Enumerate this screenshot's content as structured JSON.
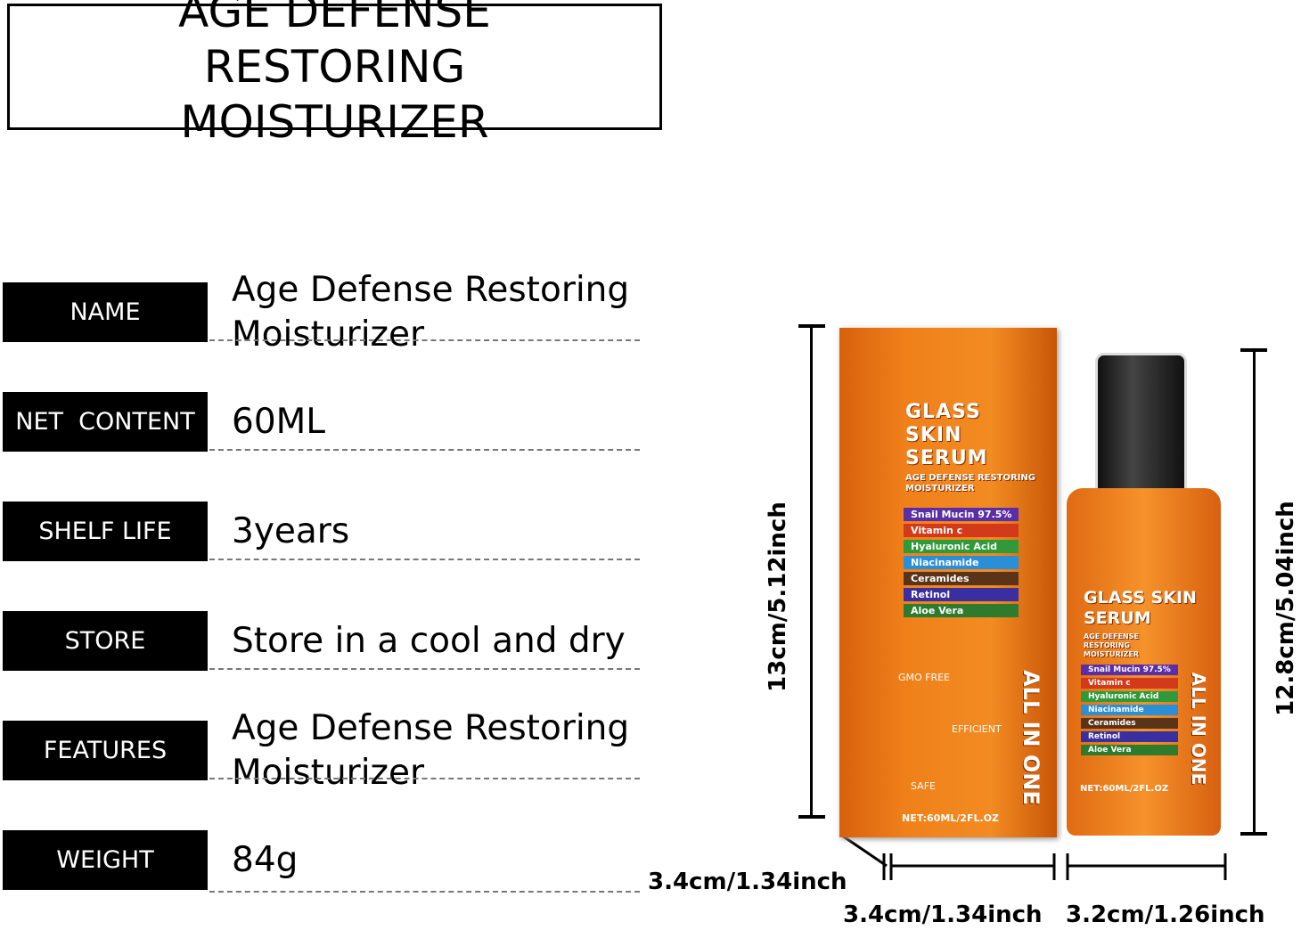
{
  "header": {
    "title": "AGE DEFENSE RESTORING MOISTURIZER"
  },
  "specs": [
    {
      "label": "NAME",
      "value": "Age Defense Restoring Moisturizer"
    },
    {
      "label": "NET  CONTENT",
      "value": "60ML"
    },
    {
      "label": "SHELF LIFE",
      "value": "3years"
    },
    {
      "label": "STORE",
      "value": "Store in a cool and dry"
    },
    {
      "label": "FEATURES",
      "value": "Age Defense Restoring Moisturizer"
    },
    {
      "label": "WEIGHT",
      "value": "84g"
    }
  ],
  "dimensions": {
    "box_height": "13cm/5.12inch",
    "bottle_height": "12.8cm/5.04inch",
    "box_depth": "3.4cm/1.34inch",
    "box_width": "3.4cm/1.34inch",
    "bottle_width": "3.2cm/1.26inch"
  },
  "product": {
    "title": "GLASS SKIN SERUM",
    "subtitle": "AGE DEFENSE RESTORING MOISTURIZER",
    "ingredients": [
      "Snail Mucin 97.5%",
      "Vitamin c",
      "Hyaluronic Acid",
      "Niacinamide",
      "Ceramides",
      "Retinol",
      "Aloe Vera"
    ],
    "badges": [
      "GMO FREE",
      "EFFICIENT",
      "SAFE"
    ],
    "slogan": "ALL IN ONE",
    "net": "NET:60ML/2FL.OZ"
  }
}
